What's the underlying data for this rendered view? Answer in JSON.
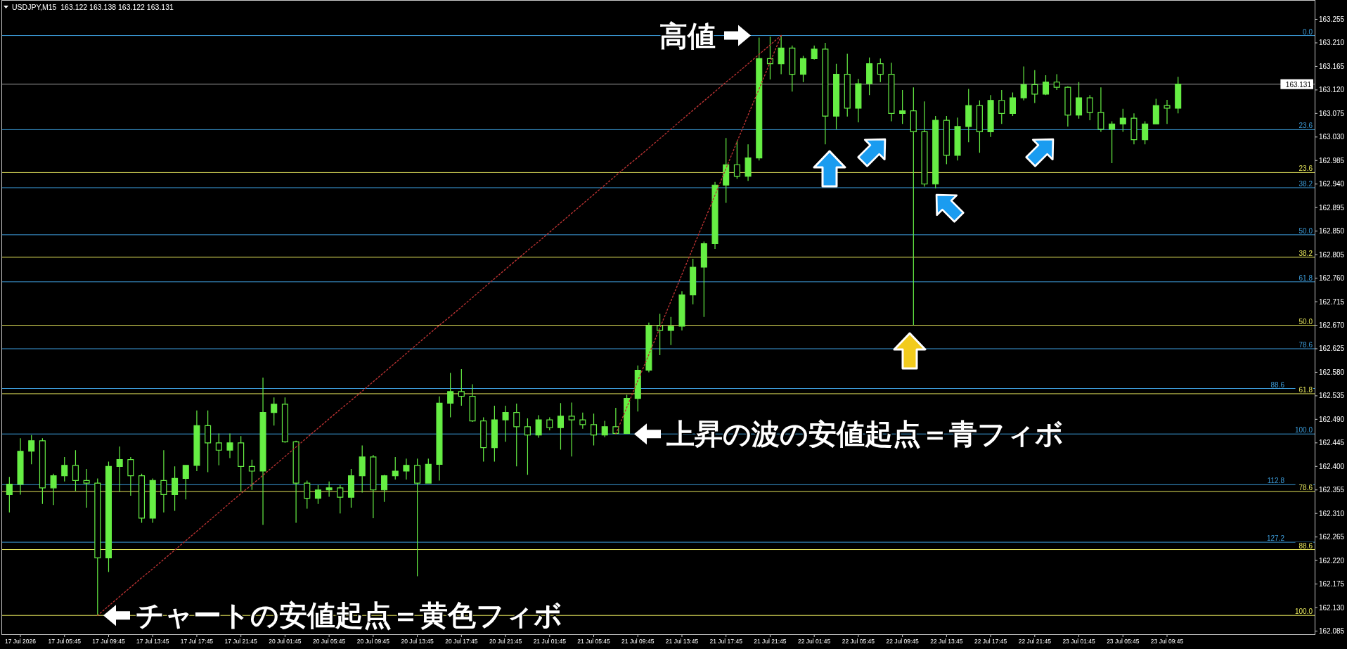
{
  "chart_data": {
    "type": "candlestick",
    "title": "USDJPY,M15  163.122 163.138 163.122 163.131",
    "categories": [
      null,
      "17 Jul 2026",
      null,
      null,
      null,
      "17 Jul 05:45",
      null,
      null,
      null,
      "17 Jul 09:45",
      null,
      null,
      null,
      "17 Jul 13:45",
      null,
      null,
      null,
      "17 Jul 17:45",
      null,
      null,
      null,
      "17 Jul 21:45",
      null,
      null,
      null,
      "20 Jul 01:45",
      null,
      null,
      null,
      "20 Jul 05:45",
      null,
      null,
      null,
      "20 Jul 09:45",
      null,
      null,
      null,
      "20 Jul 13:45",
      null,
      null,
      null,
      "20 Jul 17:45",
      null,
      null,
      null,
      "20 Jul 21:45",
      null,
      null,
      null,
      "21 Jul 01:45",
      null,
      null,
      null,
      "21 Jul 05:45",
      null,
      null,
      null,
      "21 Jul 09:45",
      null,
      null,
      null,
      "21 Jul 13:45",
      null,
      null,
      null,
      "21 Jul 17:45",
      null,
      null,
      null,
      "21 Jul 21:45",
      null,
      null,
      null,
      "22 Jul 01:45",
      null,
      null,
      null,
      "22 Jul 05:45",
      null,
      null,
      null,
      "22 Jul 09:45",
      null,
      null,
      null,
      "22 Jul 13:45",
      null,
      null,
      null,
      "22 Jul 17:45",
      null,
      null,
      null,
      "22 Jul 21:45",
      null,
      null,
      null,
      "23 Jul 01:45",
      null,
      null,
      null,
      "23 Jul 05:45",
      null,
      null,
      null,
      "23 Jul 09:45",
      null
    ],
    "ohlc": [
      [
        162.346,
        162.38,
        162.312,
        162.366
      ],
      [
        162.366,
        162.454,
        162.346,
        162.429
      ],
      [
        162.429,
        162.46,
        162.404,
        162.449
      ],
      [
        162.449,
        162.454,
        162.328,
        162.359
      ],
      [
        162.359,
        162.386,
        162.326,
        162.382
      ],
      [
        162.382,
        162.418,
        162.371,
        162.402
      ],
      [
        162.402,
        162.431,
        162.353,
        162.373
      ],
      [
        162.373,
        162.395,
        162.321,
        162.368
      ],
      [
        162.368,
        162.377,
        162.115,
        162.225
      ],
      [
        162.225,
        162.409,
        162.198,
        162.4
      ],
      [
        162.4,
        162.438,
        162.351,
        162.413
      ],
      [
        162.413,
        162.418,
        162.344,
        162.382
      ],
      [
        162.382,
        162.386,
        162.292,
        162.301
      ],
      [
        162.301,
        162.377,
        162.292,
        162.373
      ],
      [
        162.373,
        162.431,
        162.312,
        162.346
      ],
      [
        162.346,
        162.4,
        162.315,
        162.377
      ],
      [
        162.377,
        162.402,
        162.337,
        162.402
      ],
      [
        162.402,
        162.507,
        162.391,
        162.478
      ],
      [
        162.478,
        162.507,
        162.389,
        162.445
      ],
      [
        162.445,
        162.463,
        162.402,
        162.431
      ],
      [
        162.431,
        162.463,
        162.416,
        162.445
      ],
      [
        162.445,
        162.458,
        162.353,
        162.4
      ],
      [
        162.4,
        162.413,
        162.355,
        162.391
      ],
      [
        162.391,
        162.57,
        162.288,
        162.503
      ],
      [
        162.503,
        162.532,
        162.478,
        162.519
      ],
      [
        162.519,
        162.532,
        162.445,
        162.447
      ],
      [
        162.447,
        162.449,
        162.292,
        162.368
      ],
      [
        162.368,
        162.373,
        162.319,
        162.339
      ],
      [
        162.339,
        162.364,
        162.328,
        162.355
      ],
      [
        162.355,
        162.371,
        162.342,
        162.359
      ],
      [
        162.359,
        162.364,
        162.31,
        162.341
      ],
      [
        162.341,
        162.395,
        162.321,
        162.382
      ],
      [
        162.382,
        162.44,
        162.35,
        162.418
      ],
      [
        162.418,
        162.422,
        162.301,
        162.355
      ],
      [
        162.355,
        162.384,
        162.332,
        162.382
      ],
      [
        162.382,
        162.418,
        162.375,
        162.391
      ],
      [
        162.391,
        162.415,
        162.375,
        162.402
      ],
      [
        162.402,
        162.415,
        162.19,
        162.368
      ],
      [
        162.368,
        162.415,
        162.368,
        162.404
      ],
      [
        162.404,
        162.534,
        162.373,
        162.521
      ],
      [
        162.521,
        162.579,
        162.494,
        162.543
      ],
      [
        162.543,
        162.586,
        162.516,
        162.534
      ],
      [
        162.534,
        162.557,
        162.485,
        162.487
      ],
      [
        162.487,
        162.494,
        162.409,
        162.436
      ],
      [
        162.436,
        162.516,
        162.409,
        162.489
      ],
      [
        162.489,
        162.516,
        162.447,
        162.503
      ],
      [
        162.503,
        162.52,
        162.4,
        162.476
      ],
      [
        162.476,
        162.492,
        162.384,
        162.46
      ],
      [
        162.46,
        162.498,
        162.455,
        162.489
      ],
      [
        162.489,
        162.494,
        162.469,
        162.474
      ],
      [
        162.474,
        162.521,
        162.432,
        162.496
      ],
      [
        162.496,
        162.522,
        162.419,
        162.489
      ],
      [
        162.489,
        162.503,
        162.472,
        162.48
      ],
      [
        162.48,
        162.501,
        162.44,
        162.46
      ],
      [
        162.46,
        162.487,
        162.456,
        162.476
      ],
      [
        162.476,
        162.512,
        162.462,
        162.463
      ],
      [
        162.463,
        162.537,
        162.463,
        162.53
      ],
      [
        162.53,
        162.593,
        162.505,
        162.584
      ],
      [
        162.584,
        162.675,
        162.58,
        162.669
      ],
      [
        162.669,
        162.692,
        162.613,
        162.66
      ],
      [
        162.66,
        162.686,
        162.632,
        162.668
      ],
      [
        162.668,
        162.735,
        162.66,
        162.728
      ],
      [
        162.728,
        162.797,
        162.71,
        162.781
      ],
      [
        162.781,
        162.83,
        162.686,
        162.826
      ],
      [
        162.826,
        162.944,
        162.816,
        162.938
      ],
      [
        162.938,
        163.028,
        162.904,
        162.977
      ],
      [
        162.977,
        163.022,
        162.95,
        162.955
      ],
      [
        162.955,
        163.016,
        162.946,
        162.99
      ],
      [
        162.99,
        163.22,
        162.985,
        163.18
      ],
      [
        163.18,
        163.222,
        163.14,
        163.17
      ],
      [
        163.17,
        163.224,
        163.15,
        163.2
      ],
      [
        163.2,
        163.205,
        163.117,
        163.15
      ],
      [
        163.15,
        163.185,
        163.135,
        163.18
      ],
      [
        163.18,
        163.205,
        163.178,
        163.198
      ],
      [
        163.198,
        163.21,
        163.016,
        163.07
      ],
      [
        163.07,
        163.17,
        163.045,
        163.15
      ],
      [
        163.15,
        163.189,
        163.069,
        163.085
      ],
      [
        163.085,
        163.141,
        163.058,
        163.132
      ],
      [
        163.132,
        163.182,
        163.11,
        163.17
      ],
      [
        163.17,
        163.18,
        163.135,
        163.15
      ],
      [
        163.15,
        163.172,
        163.06,
        163.075
      ],
      [
        163.075,
        163.12,
        163.055,
        163.08
      ],
      [
        163.08,
        163.125,
        162.67,
        163.04
      ],
      [
        163.04,
        163.098,
        162.935,
        162.94
      ],
      [
        162.94,
        163.07,
        162.932,
        163.062
      ],
      [
        163.062,
        163.07,
        162.978,
        162.995
      ],
      [
        162.995,
        163.067,
        162.985,
        163.05
      ],
      [
        163.05,
        163.122,
        163.02,
        163.09
      ],
      [
        163.09,
        163.1,
        163.0,
        163.04
      ],
      [
        163.04,
        163.11,
        163.03,
        163.1
      ],
      [
        163.1,
        163.12,
        163.055,
        163.075
      ],
      [
        163.075,
        163.115,
        163.07,
        163.105
      ],
      [
        163.105,
        163.165,
        163.1,
        163.13
      ],
      [
        163.13,
        163.158,
        163.095,
        163.112
      ],
      [
        163.112,
        163.148,
        163.11,
        163.135
      ],
      [
        163.135,
        163.15,
        163.12,
        163.125
      ],
      [
        163.125,
        163.127,
        163.05,
        163.072
      ],
      [
        163.072,
        163.135,
        163.065,
        163.105
      ],
      [
        163.105,
        163.11,
        163.062,
        163.077
      ],
      [
        163.077,
        163.125,
        163.04,
        163.045
      ],
      [
        163.045,
        163.06,
        162.98,
        163.055
      ],
      [
        163.055,
        163.084,
        163.04,
        163.066
      ],
      [
        163.066,
        163.075,
        163.016,
        163.025
      ],
      [
        163.025,
        163.06,
        163.016,
        163.055
      ],
      [
        163.055,
        163.103,
        163.055,
        163.09
      ],
      [
        163.09,
        163.101,
        163.055,
        163.085
      ],
      [
        163.085,
        163.145,
        163.075,
        163.131
      ]
    ],
    "color": "#66ee44",
    "series": [
      {
        "type": "line",
        "color": "#b83232",
        "line_style": "dotted",
        "values": [
          null,
          null,
          null,
          null,
          null,
          null,
          null,
          null,
          162.115,
          162.133,
          162.151,
          162.169,
          162.187,
          162.204,
          162.222,
          162.24,
          162.258,
          162.276,
          162.294,
          162.312,
          162.33,
          162.348,
          162.365,
          162.383,
          162.401,
          162.419,
          162.437,
          162.455,
          162.473,
          162.491,
          162.509,
          162.526,
          162.544,
          162.562,
          162.58,
          162.598,
          162.616,
          162.634,
          162.652,
          162.67,
          162.687,
          162.705,
          162.723,
          162.741,
          162.759,
          162.777,
          162.795,
          162.813,
          162.83,
          162.848,
          162.866,
          162.884,
          162.902,
          162.92,
          162.938,
          162.956,
          162.974,
          162.991,
          163.009,
          163.027,
          163.045,
          163.063,
          163.081,
          163.099,
          163.117,
          163.135,
          163.152,
          163.17,
          163.188,
          163.206,
          163.224,
          null,
          null,
          null,
          null,
          null,
          null,
          null,
          null,
          null,
          null,
          null,
          null,
          null,
          null,
          null,
          null,
          null,
          null,
          null,
          null,
          null,
          null,
          null,
          null,
          null,
          null,
          null,
          null,
          null,
          null,
          null,
          null,
          null,
          null,
          null,
          null
        ]
      },
      {
        "type": "line",
        "color": "#b83232",
        "line_style": "dotted",
        "values": [
          null,
          null,
          null,
          null,
          null,
          null,
          null,
          null,
          null,
          null,
          null,
          null,
          null,
          null,
          null,
          null,
          null,
          null,
          null,
          null,
          null,
          null,
          null,
          null,
          null,
          null,
          null,
          null,
          null,
          null,
          null,
          null,
          null,
          null,
          null,
          null,
          null,
          null,
          null,
          null,
          null,
          null,
          null,
          null,
          null,
          null,
          null,
          null,
          null,
          null,
          null,
          null,
          null,
          null,
          null,
          162.462,
          162.513,
          162.564,
          162.614,
          162.665,
          162.716,
          162.767,
          162.818,
          162.868,
          162.919,
          162.97,
          163.021,
          163.072,
          163.122,
          163.173,
          163.224,
          null,
          null,
          null,
          null,
          null,
          null,
          null,
          null,
          null,
          null,
          null,
          null,
          null,
          null,
          null,
          null,
          null,
          null,
          null,
          null,
          null,
          null,
          null,
          null,
          null,
          null,
          null,
          null,
          null,
          null,
          null,
          null,
          null,
          null,
          null,
          null
        ]
      }
    ],
    "ylim": [
      162.079,
      163.292
    ],
    "yticks": [
      163.255,
      {
        "value": 163.21,
        "label": "163.210"
      },
      163.165,
      {
        "value": 163.12,
        "label": "163.120"
      },
      163.075,
      {
        "value": 163.03,
        "label": "163.030"
      },
      162.985,
      {
        "value": 162.94,
        "label": "162.940"
      },
      162.895,
      {
        "value": 162.85,
        "label": "162.850"
      },
      162.805,
      {
        "value": 162.76,
        "label": "162.760"
      },
      162.715,
      {
        "value": 162.67,
        "label": "162.670"
      },
      162.625,
      {
        "value": 162.58,
        "label": "162.580"
      },
      162.535,
      {
        "value": 162.49,
        "label": "162.490"
      },
      162.445,
      {
        "value": 162.4,
        "label": "162.400"
      },
      162.355,
      {
        "value": 162.31,
        "label": "162.310"
      },
      162.265,
      {
        "value": 162.22,
        "label": "162.220"
      },
      162.175,
      {
        "value": 162.13,
        "label": "162.130"
      },
      162.085
    ],
    "ref_lines": [
      {
        "axis": "y",
        "value": 162.962,
        "color": "#e6e65c"
      },
      {
        "axis": "y",
        "value": 162.8,
        "color": "#e6e65c"
      },
      {
        "axis": "y",
        "value": 162.67,
        "color": "#e6e65c"
      },
      {
        "axis": "y",
        "value": 162.539,
        "color": "#e6e65c"
      },
      {
        "axis": "y",
        "value": 162.352,
        "color": "#e6e65c"
      },
      {
        "axis": "y",
        "value": 162.241,
        "color": "#e6e65c"
      },
      {
        "axis": "y",
        "value": 162.115,
        "color": "#e6e65c"
      },
      {
        "axis": "y",
        "value": 163.224,
        "color": "#3c9bd8"
      },
      {
        "axis": "y",
        "value": 163.044,
        "color": "#3c9bd8"
      },
      {
        "axis": "y",
        "value": 162.933,
        "color": "#3c9bd8"
      },
      {
        "axis": "y",
        "value": 162.843,
        "color": "#3c9bd8"
      },
      {
        "axis": "y",
        "value": 162.753,
        "color": "#3c9bd8"
      },
      {
        "axis": "y",
        "value": 162.625,
        "color": "#3c9bd8"
      },
      {
        "axis": "y",
        "value": 162.549,
        "color": "#3c9bd8"
      },
      {
        "axis": "y",
        "value": 162.462,
        "color": "#3c9bd8"
      },
      {
        "axis": "y",
        "value": 162.365,
        "color": "#3c9bd8"
      },
      {
        "axis": "y",
        "value": 162.255,
        "color": "#3c9bd8"
      },
      {
        "axis": "y",
        "value": 163.131,
        "label": "163.131",
        "color": "#a0a0a0"
      }
    ],
    "annotations": [
      {
        "text": "高値",
        "y": 163.224
      },
      {
        "text": "上昇の波の安値起点＝青フィボ",
        "y": 162.462
      },
      {
        "text": "チャートの安値起点＝黄色フィボ",
        "y": 162.115
      },
      {
        "text": "23.6",
        "y": 162.962
      },
      {
        "text": "38.2",
        "y": 162.8
      },
      {
        "text": "50.0",
        "y": 162.67
      },
      {
        "text": "61.8",
        "y": 162.539
      },
      {
        "text": "78.6",
        "y": 162.352
      },
      {
        "text": "88.6",
        "y": 162.241
      },
      {
        "text": "100.0",
        "y": 162.115
      },
      {
        "text": "0.0",
        "y": 163.224
      },
      {
        "text": "23.6",
        "y": 163.044
      },
      {
        "text": "38.2",
        "y": 162.933
      },
      {
        "text": "50.0",
        "y": 162.843
      },
      {
        "text": "61.8",
        "y": 162.753
      },
      {
        "text": "78.6",
        "y": 162.625
      },
      {
        "text": "88.6",
        "y": 162.549
      },
      {
        "text": "100.0",
        "y": 162.462
      },
      {
        "text": "112.8",
        "y": 162.365
      },
      {
        "text": "127.2",
        "y": 162.255
      }
    ]
  }
}
